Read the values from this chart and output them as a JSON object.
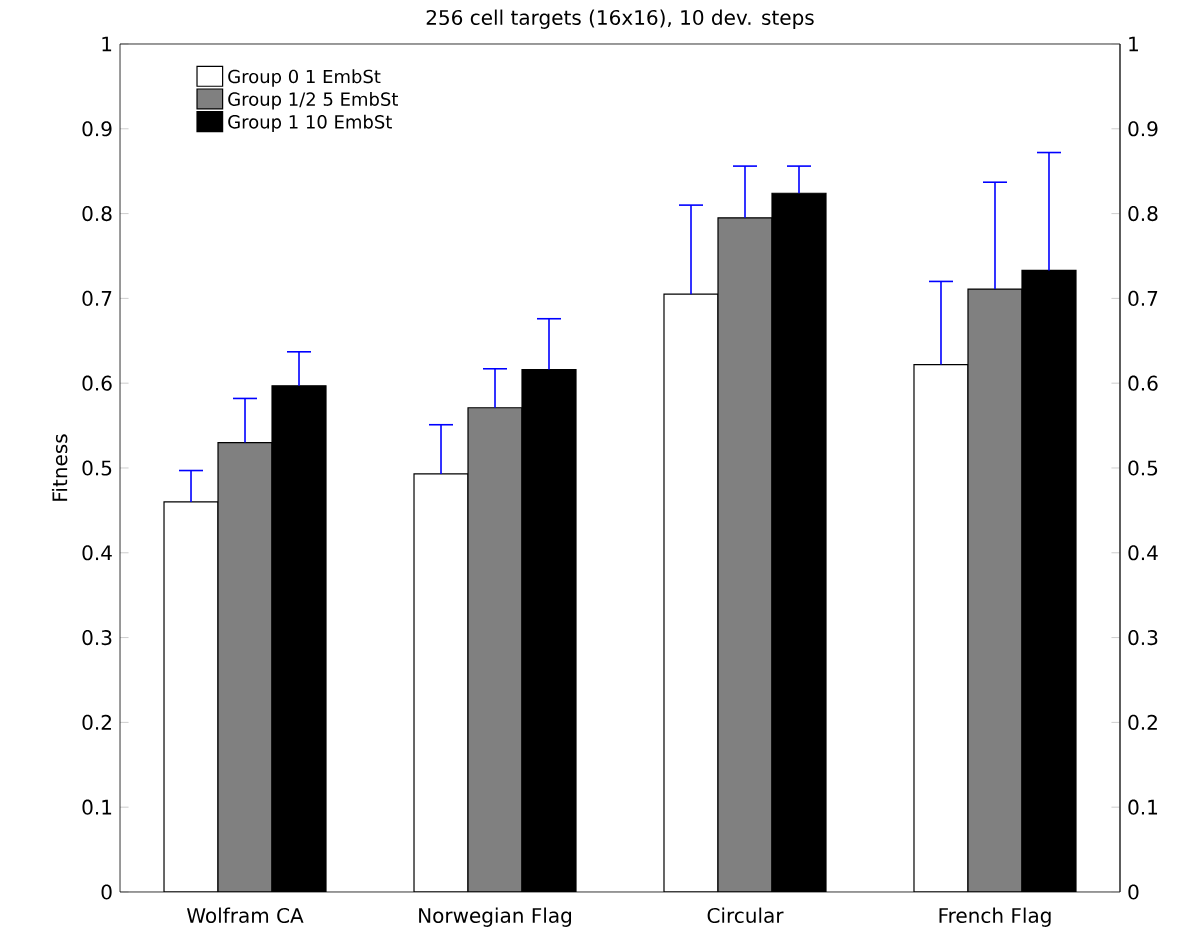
{
  "chart_data": {
    "type": "bar",
    "title": "256 cell targets (16x16), 10 dev. steps",
    "ylabel": "Fitness",
    "categories": [
      "Wolfram CA",
      "Norwegian Flag",
      "Circular",
      "French Flag"
    ],
    "series": [
      {
        "name": "Group 0 1 EmbSt",
        "color": "#ffffff",
        "values": [
          0.46,
          0.493,
          0.705,
          0.622
        ],
        "errors": [
          [
            0.46,
            0.497
          ],
          [
            0.493,
            0.551
          ],
          [
            0.705,
            0.81
          ],
          [
            0.622,
            0.72
          ]
        ]
      },
      {
        "name": "Group 1/2 5 EmbSt",
        "color": "#808080",
        "values": [
          0.53,
          0.571,
          0.795,
          0.711
        ],
        "errors": [
          [
            0.53,
            0.582
          ],
          [
            0.571,
            0.617
          ],
          [
            0.795,
            0.856
          ],
          [
            0.711,
            0.837
          ]
        ]
      },
      {
        "name": "Group 1 10 EmbSt",
        "color": "#000000",
        "values": [
          0.597,
          0.616,
          0.824,
          0.733
        ],
        "errors": [
          [
            0.597,
            0.637
          ],
          [
            0.616,
            0.676
          ],
          [
            0.824,
            0.856
          ],
          [
            0.733,
            0.872
          ]
        ]
      }
    ],
    "ylim": [
      0,
      1
    ],
    "yticks": [
      0,
      0.1,
      0.2,
      0.3,
      0.4,
      0.5,
      0.6,
      0.7,
      0.8,
      0.9,
      1
    ],
    "y2lim": [
      0,
      1
    ],
    "y2ticks": [
      0,
      0.1,
      0.2,
      0.3,
      0.4,
      0.5,
      0.6,
      0.7,
      0.8,
      0.9,
      1
    ],
    "legend": "top left",
    "grid": false
  }
}
